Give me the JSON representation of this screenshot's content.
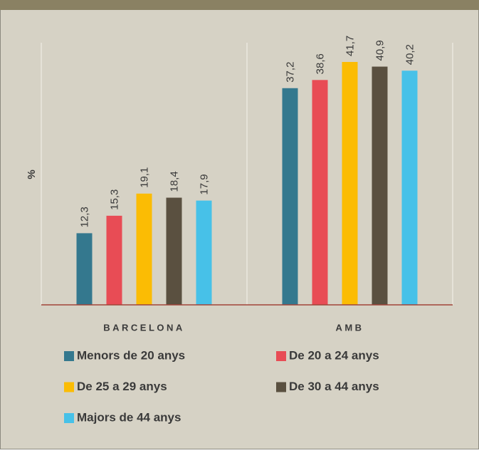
{
  "chart_data": {
    "type": "bar",
    "y_label": "%",
    "categories": [
      "BARCELONA",
      "AMB"
    ],
    "series": [
      {
        "name": "Menors de 20 anys",
        "color": "#34788e",
        "values": [
          12.3,
          37.2
        ],
        "value_labels": [
          "12,3",
          "37,2"
        ]
      },
      {
        "name": "De 20 a 24 anys",
        "color": "#e84c55",
        "values": [
          15.3,
          38.6
        ],
        "value_labels": [
          "15,3",
          "38,6"
        ]
      },
      {
        "name": "De 25 a 29 anys",
        "color": "#fbbc04",
        "values": [
          19.1,
          41.7
        ],
        "value_labels": [
          "19,1",
          "41,7"
        ]
      },
      {
        "name": "De 30 a 44 anys",
        "color": "#5a5040",
        "values": [
          18.4,
          40.9
        ],
        "value_labels": [
          "18,4",
          "40,9"
        ]
      },
      {
        "name": "Majors de 44 anys",
        "color": "#47c1e8",
        "values": [
          17.9,
          40.2
        ],
        "value_labels": [
          "17,9",
          "40,2"
        ]
      }
    ],
    "ylim": [
      0,
      45
    ]
  }
}
